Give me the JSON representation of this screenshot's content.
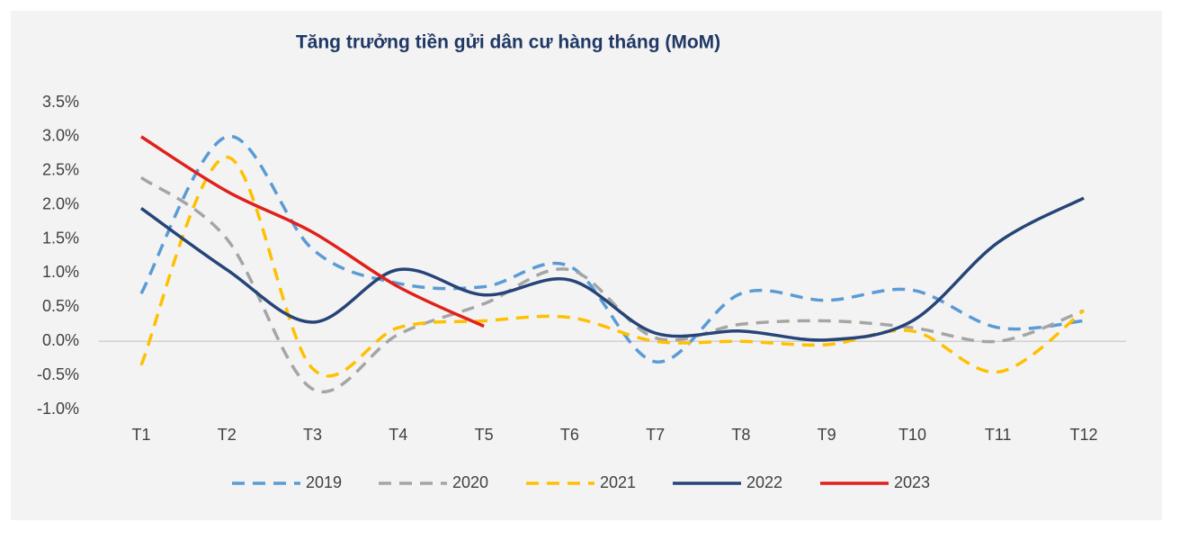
{
  "chart_data": {
    "type": "line",
    "title": "Tăng trưởng tiền gửi dân cư hàng tháng (MoM)",
    "categories": [
      "T1",
      "T2",
      "T3",
      "T4",
      "T5",
      "T6",
      "T7",
      "T8",
      "T9",
      "T10",
      "T11",
      "T12"
    ],
    "ylim": [
      -1.0,
      3.5
    ],
    "yticks": [
      {
        "value": -1.0,
        "label": "-1.0%"
      },
      {
        "value": -0.5,
        "label": "-0.5%"
      },
      {
        "value": 0,
        "label": "0.0%"
      },
      {
        "value": 0.5,
        "label": "0.5%"
      },
      {
        "value": 1.0,
        "label": "1.0%"
      },
      {
        "value": 1.5,
        "label": "1.5%"
      },
      {
        "value": 2.0,
        "label": "2.0%"
      },
      {
        "value": 2.5,
        "label": "2.5%"
      },
      {
        "value": 3.0,
        "label": "3.0%"
      },
      {
        "value": 3.5,
        "label": "3.5%"
      }
    ],
    "grid": false,
    "smooth": true,
    "legend": "bottom",
    "series": [
      {
        "name": "2019",
        "color": "#5b9bd5",
        "dashed": true,
        "values": [
          0.7,
          3.0,
          1.35,
          0.85,
          0.8,
          1.1,
          -0.3,
          0.7,
          0.6,
          0.75,
          0.2,
          0.3
        ]
      },
      {
        "name": "2020",
        "color": "#a5a5a5",
        "dashed": true,
        "values": [
          2.4,
          1.5,
          -0.7,
          0.1,
          0.55,
          1.05,
          0.05,
          0.25,
          0.3,
          0.2,
          0.0,
          0.45
        ]
      },
      {
        "name": "2021",
        "color": "#ffc000",
        "dashed": true,
        "values": [
          -0.35,
          2.7,
          -0.4,
          0.2,
          0.3,
          0.35,
          0.0,
          0.0,
          -0.05,
          0.15,
          -0.45,
          0.45
        ]
      },
      {
        "name": "2022",
        "color": "#264478",
        "dashed": false,
        "values": [
          1.95,
          1.05,
          0.28,
          1.05,
          0.68,
          0.9,
          0.12,
          0.15,
          0.02,
          0.3,
          1.45,
          2.1
        ]
      },
      {
        "name": "2023",
        "color": "#e0201b",
        "dashed": false,
        "values": [
          3.0,
          2.2,
          1.6,
          0.8,
          0.22,
          null,
          null,
          null,
          null,
          null,
          null,
          null
        ]
      }
    ]
  }
}
